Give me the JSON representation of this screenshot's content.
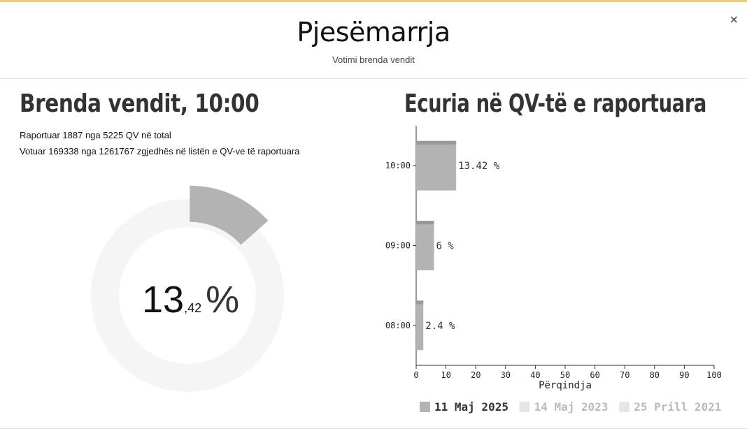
{
  "modal": {
    "close_label": "×",
    "title": "Pjesëmarrja",
    "subtitle": "Votimi brenda vendit"
  },
  "left": {
    "heading": "Brenda vendit, 10:00",
    "reported_text": "Raportuar 1887 nga 5225 QV në total",
    "voted_text": "Votuar 169338 nga 1261767 zgjedhës në listën e QV-ve të raportuara",
    "turnout_integer": "13",
    "turnout_decimal": ",42",
    "turnout_percent_sign": "%"
  },
  "right": {
    "heading": "Ecuria në QV-të e raportuara"
  },
  "colors": {
    "bar": "#b3b3b3",
    "bar_top": "#999999",
    "donut_fill": "#b3b3b3",
    "donut_track": "#f5f5f5",
    "legend_active": "#b3b3b3",
    "legend_inactive": "#e6e6e6",
    "axis": "#333333",
    "top_border": "#f0c87a"
  },
  "chart_data": [
    {
      "type": "pie",
      "values": [
        13.42,
        86.58
      ],
      "labels": [
        "",
        ""
      ],
      "title": "",
      "center_label": "13,42 %"
    },
    {
      "type": "bar",
      "orientation": "horizontal",
      "categories": [
        "10:00",
        "09:00",
        "08:00"
      ],
      "series": [
        {
          "name": "11 Maj 2025",
          "values": [
            13.42,
            6,
            2.4
          ]
        }
      ],
      "data_labels": [
        "13.42 %",
        "6 %",
        "2.4 %"
      ],
      "xlabel": "Përqindja",
      "ylabel": "",
      "xlim": [
        0,
        100
      ],
      "x_ticks": [
        "0",
        "10",
        "20",
        "30",
        "40",
        "50",
        "60",
        "70",
        "80",
        "90",
        "100"
      ],
      "legend": [
        {
          "label": "11 Maj 2025",
          "active": true
        },
        {
          "label": "14 Maj 2023",
          "active": false
        },
        {
          "label": "25 Prill 2021",
          "active": false
        }
      ],
      "legend_position": "bottom",
      "grid": false
    }
  ]
}
